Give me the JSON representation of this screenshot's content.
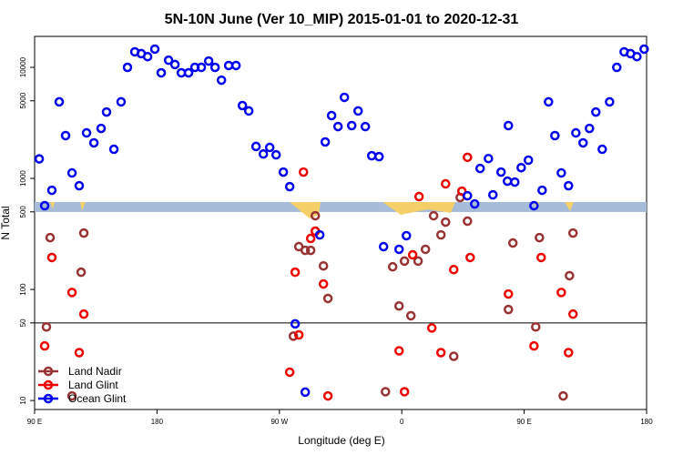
{
  "chart_data": {
    "type": "scatter",
    "title": "5N-10N June (Ver 10_MIP)   2015-01-01 to 2020-12-31",
    "x_label": "Longitude (deg E)",
    "y_label": "N Total",
    "log_y": true,
    "legend": "bottom-left",
    "reference_line": 50,
    "xlim": [
      90,
      540
    ],
    "ylim": [
      8.3,
      19000
    ],
    "xticks": [
      {
        "value": 90,
        "label": "90 E"
      },
      180,
      {
        "value": 270,
        "label": "90 W"
      },
      {
        "value": 360,
        "label": "0"
      },
      {
        "value": 450,
        "label": "90 E"
      },
      {
        "value": 540,
        "label": "180"
      }
    ],
    "yticks": [
      10,
      50,
      100,
      500,
      1000,
      5000,
      10000
    ],
    "series": [
      {
        "name": "Land Nadir",
        "color": "#993333",
        "x": [
          98.7,
          101.4,
          117.5,
          124.2,
          126.2,
          284.3,
          289,
          293,
          296.4,
          302.4,
          305.7,
          280.3,
          348,
          358,
          366.7,
          353.3,
          362,
          372,
          377.4,
          383.4,
          388.8,
          392.2,
          398.2,
          402.9,
          408.3,
          438.4,
          441.7,
          458.5,
          461.2,
          478.7,
          483.3,
          485.9
        ],
        "values": [
          46,
          293,
          11,
          143,
          322,
          243,
          225,
          225,
          461,
          163,
          83,
          38,
          12,
          71,
          58,
          160,
          180,
          180,
          230,
          461,
          310,
          404,
          25,
          673,
          412,
          66,
          262,
          46,
          293,
          11,
          133,
          322
        ]
      },
      {
        "name": "Land Glint",
        "color": "#ee0000",
        "x": [
          97.4,
          102.7,
          117.5,
          122.8,
          126.2,
          277.6,
          281.6,
          284.3,
          287.7,
          293,
          296.4,
          302.4,
          305.7,
          358,
          362,
          368,
          372.7,
          382.1,
          388.8,
          392.2,
          398.2,
          404.2,
          408.3,
          410.3,
          438.4,
          457.2,
          462.5,
          477.3,
          482.6,
          485.9
        ],
        "values": [
          31,
          194,
          94,
          27,
          60,
          18,
          143,
          39,
          1140,
          288,
          335,
          112,
          11,
          28,
          12,
          205,
          686,
          45,
          27,
          893,
          151,
          767,
          1550,
          194,
          91,
          31,
          194,
          94,
          27,
          60
        ]
      },
      {
        "name": "Ocean Glint",
        "color": "#0000ee",
        "x": [
          93.4,
          97.4,
          102.7,
          108.1,
          112.8,
          117.5,
          122.8,
          128.2,
          133.6,
          138.9,
          142.9,
          148.3,
          153.6,
          158.3,
          163.7,
          168.4,
          173.1,
          178.4,
          183.1,
          188.5,
          193.2,
          197.9,
          203.2,
          207.9,
          212.6,
          218,
          222.7,
          227.4,
          232.7,
          238.1,
          242.8,
          247.5,
          252.8,
          258.2,
          262.9,
          267.6,
          272.9,
          277.6,
          281.6,
          289,
          299.7,
          303.7,
          308.4,
          313.1,
          317.8,
          323.2,
          327.9,
          333.2,
          337.9,
          343.3,
          346.6,
          358,
          363.4,
          408.3,
          413.6,
          417.6,
          423.7,
          427,
          433,
          437.7,
          438.4,
          443.1,
          447.8,
          453.1,
          457.2,
          463.2,
          467.9,
          472.6,
          477.3,
          482.6,
          488,
          493.3,
          498,
          502.7,
          507.4,
          512.8,
          518.1,
          523.5,
          528.2,
          532.9,
          538.2
        ],
        "values": [
          1500,
          568,
          782,
          4890,
          2430,
          1120,
          859,
          2570,
          2090,
          2820,
          3960,
          1830,
          4890,
          10000,
          13800,
          13300,
          12500,
          14600,
          8930,
          11600,
          10600,
          8930,
          8930,
          10000,
          10000,
          11400,
          10000,
          7670,
          10400,
          10400,
          4530,
          4050,
          1940,
          1660,
          1900,
          1630,
          1140,
          843,
          49,
          11.9,
          310,
          2130,
          3680,
          2930,
          5370,
          2990,
          4050,
          2930,
          1600,
          1570,
          243,
          230,
          305,
          698,
          589,
          1230,
          1510,
          711,
          1140,
          944,
          2990,
          927,
          1250,
          1460,
          568,
          782,
          4890,
          2430,
          1120,
          859,
          2570,
          2090,
          2820,
          3960,
          1830,
          4890,
          10000,
          13800,
          13300,
          12500,
          14600
        ]
      }
    ]
  }
}
